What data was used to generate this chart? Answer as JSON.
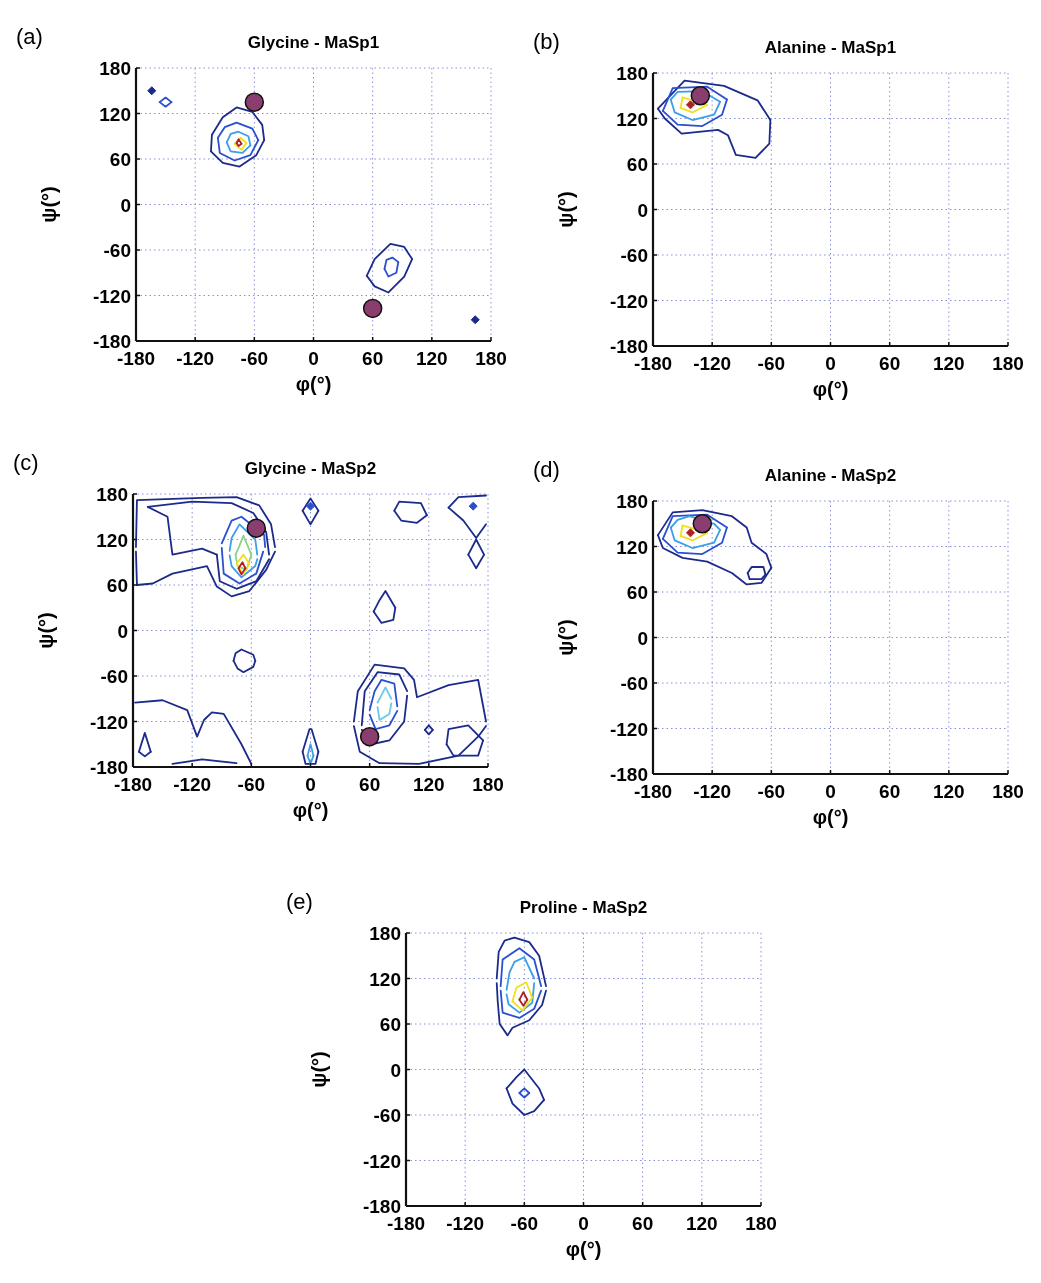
{
  "chart_data": [
    {
      "type": "line",
      "title": "Glycine - MaSp1",
      "xlabel": "φ(°)",
      "ylabel": "ψ(°)",
      "annotations": [
        "(a)"
      ],
      "xlim": [
        -180,
        180
      ],
      "ylim": [
        -180,
        180
      ],
      "xticks": [
        -180,
        -120,
        -60,
        0,
        60,
        120,
        180
      ],
      "yticks": [
        -180,
        -120,
        -60,
        0,
        60,
        120,
        180
      ],
      "grid": true,
      "series": [
        {
          "color": "#1c2a8c",
          "x": [
            -104,
            -103,
            -92,
            -78,
            -62,
            -52,
            -50
          ],
          "values": [
            70,
            92,
            115,
            128,
            122,
            105,
            85
          ]
        },
        {
          "color": "#1c2a8c",
          "x": [
            -104,
            -92,
            -75,
            -58,
            -50
          ],
          "values": [
            70,
            55,
            50,
            65,
            85
          ]
        },
        {
          "color": "#2a4fd0",
          "x": [
            -97,
            -90,
            -78,
            -62,
            -56
          ],
          "values": [
            88,
            102,
            108,
            100,
            85
          ]
        },
        {
          "color": "#2a4fd0",
          "x": [
            -97,
            -95,
            -80,
            -64,
            -56
          ],
          "values": [
            88,
            68,
            58,
            65,
            85
          ]
        },
        {
          "color": "#3a9ee8",
          "x": [
            -88,
            -84,
            -76,
            -66,
            -64
          ],
          "values": [
            82,
            93,
            96,
            90,
            78
          ]
        },
        {
          "color": "#3a9ee8",
          "x": [
            -88,
            -84,
            -72,
            -64
          ],
          "values": [
            82,
            70,
            68,
            78
          ]
        },
        {
          "color": "#f0e020",
          "x": [
            -80,
            -74,
            -68
          ],
          "values": [
            80,
            88,
            81
          ]
        },
        {
          "color": "#f0e020",
          "x": [
            -80,
            -73,
            -68
          ],
          "values": [
            80,
            72,
            81
          ]
        },
        {
          "color": "#b02020",
          "x": [
            -78,
            -76,
            -73
          ],
          "values": [
            81,
            86,
            80
          ]
        },
        {
          "color": "#b02020",
          "x": [
            -78,
            -76,
            -73
          ],
          "values": [
            81,
            77,
            80
          ]
        },
        {
          "color": "#2a4fd0",
          "x": [
            -156,
            -150,
            -144
          ],
          "values": [
            135,
            141,
            135
          ]
        },
        {
          "color": "#2a4fd0",
          "x": [
            -156,
            -150,
            -144
          ],
          "values": [
            135,
            129,
            135
          ]
        },
        {
          "type": "scatter",
          "marker": "diamond",
          "color": "#1c2a8c",
          "x": [
            -164,
            164
          ],
          "values": [
            150,
            -152
          ]
        },
        {
          "color": "#1c2a8c",
          "x": [
            54,
            62,
            78,
            92,
            100
          ],
          "values": [
            -94,
            -72,
            -52,
            -56,
            -72
          ]
        },
        {
          "color": "#1c2a8c",
          "x": [
            54,
            62,
            76,
            92,
            100
          ],
          "values": [
            -94,
            -108,
            -116,
            -95,
            -72
          ]
        },
        {
          "color": "#2a4fd0",
          "x": [
            72,
            74,
            80,
            86
          ],
          "values": [
            -85,
            -73,
            -70,
            -76
          ]
        },
        {
          "color": "#2a4fd0",
          "x": [
            72,
            76,
            84,
            86
          ],
          "values": [
            -85,
            -95,
            -90,
            -76
          ]
        },
        {
          "type": "scatter",
          "marker": "circle",
          "color": "#8a3d6e",
          "x": [
            -60,
            60
          ],
          "values": [
            135,
            -137
          ]
        }
      ]
    },
    {
      "type": "line",
      "title": "Alanine - MaSp1",
      "xlabel": "φ(°)",
      "ylabel": "ψ(°)",
      "annotations": [
        "(b)"
      ],
      "xlim": [
        -180,
        180
      ],
      "ylim": [
        -180,
        180
      ],
      "xticks": [
        -180,
        -120,
        -60,
        0,
        60,
        120,
        180
      ],
      "yticks": [
        -180,
        -120,
        -60,
        0,
        60,
        120,
        180
      ],
      "grid": true,
      "series": [
        {
          "color": "#1c2a8c",
          "x": [
            -175,
            -148,
            -108,
            -74,
            -61
          ],
          "values": [
            133,
            170,
            163,
            144,
            118
          ]
        },
        {
          "color": "#1c2a8c",
          "x": [
            -175,
            -168,
            -151,
            -114,
            -104,
            -96,
            -76,
            -62,
            -61
          ],
          "values": [
            133,
            120,
            100,
            105,
            98,
            72,
            68,
            87,
            118
          ]
        },
        {
          "color": "#2a4fd0",
          "x": [
            -170,
            -160,
            -125,
            -105
          ],
          "values": [
            130,
            160,
            162,
            145
          ]
        },
        {
          "color": "#2a4fd0",
          "x": [
            -170,
            -155,
            -130,
            -110,
            -105
          ],
          "values": [
            130,
            112,
            110,
            125,
            145
          ]
        },
        {
          "color": "#3a9ee8",
          "x": [
            -162,
            -155,
            -130,
            -112
          ],
          "values": [
            145,
            155,
            156,
            142
          ]
        },
        {
          "color": "#3a9ee8",
          "x": [
            -162,
            -158,
            -140,
            -118,
            -112
          ],
          "values": [
            145,
            128,
            118,
            125,
            142
          ]
        },
        {
          "color": "#f0e020",
          "x": [
            -152,
            -150,
            -125
          ],
          "values": [
            134,
            148,
            138
          ]
        },
        {
          "color": "#f0e020",
          "x": [
            -152,
            -140,
            -125
          ],
          "values": [
            134,
            128,
            138
          ]
        },
        {
          "type": "scatter",
          "marker": "diamond",
          "color": "#b02020",
          "x": [
            -142
          ],
          "values": [
            138
          ]
        },
        {
          "type": "scatter",
          "marker": "circle",
          "color": "#8a3d6e",
          "x": [
            -132
          ],
          "values": [
            150
          ]
        }
      ]
    },
    {
      "type": "line",
      "title": "Glycine - MaSp2",
      "xlabel": "φ(°)",
      "ylabel": "ψ(°)",
      "annotations": [
        "(c)"
      ],
      "xlim": [
        -180,
        180
      ],
      "ylim": [
        -180,
        180
      ],
      "xticks": [
        -180,
        -120,
        -60,
        0,
        60,
        120,
        180
      ],
      "yticks": [
        -180,
        -120,
        -60,
        0,
        60,
        120,
        180
      ],
      "grid": true,
      "series": [
        {
          "color": "#1c2a8c",
          "x": [
            -177,
            -176,
            -110,
            -75,
            -52,
            -40,
            -36
          ],
          "values": [
            110,
            172,
            175,
            176,
            165,
            140,
            110
          ]
        },
        {
          "color": "#1c2a8c",
          "x": [
            -177,
            -176,
            -160,
            -140,
            -105,
            -95,
            -80,
            -62,
            -45,
            -36
          ],
          "values": [
            104,
            60,
            62,
            75,
            85,
            58,
            45,
            52,
            80,
            104
          ]
        },
        {
          "color": "#1c2a8c",
          "x": [
            -165,
            -120,
            -80,
            -58,
            -45,
            -42
          ],
          "values": [
            163,
            170,
            168,
            155,
            130,
            100
          ]
        },
        {
          "color": "#1c2a8c",
          "x": [
            -95,
            -92,
            -75,
            -55,
            -42
          ],
          "values": [
            100,
            65,
            55,
            65,
            94
          ]
        },
        {
          "color": "#1c2a8c",
          "x": [
            -165,
            -145,
            -140,
            -110,
            -95
          ],
          "values": [
            163,
            150,
            100,
            108,
            100
          ]
        },
        {
          "color": "#2a4fd0",
          "x": [
            -90,
            -80,
            -70,
            -47,
            -46
          ],
          "values": [
            115,
            145,
            150,
            126,
            110
          ]
        },
        {
          "color": "#2a4fd0",
          "x": [
            -90,
            -88,
            -72,
            -55,
            -48
          ],
          "values": [
            109,
            75,
            62,
            75,
            104
          ]
        },
        {
          "color": "#3a9ee8",
          "x": [
            -82,
            -80,
            -72,
            -56,
            -54
          ],
          "values": [
            105,
            122,
            140,
            120,
            100
          ]
        },
        {
          "color": "#3a9ee8",
          "x": [
            -82,
            -80,
            -70,
            -56,
            -54
          ],
          "values": [
            99,
            85,
            70,
            85,
            94
          ]
        },
        {
          "color": "#8fd08a",
          "x": [
            -76,
            -72,
            -68,
            -60
          ],
          "values": [
            100,
            112,
            125,
            100
          ]
        },
        {
          "color": "#8fd08a",
          "x": [
            -76,
            -74,
            -65,
            -60
          ],
          "values": [
            100,
            85,
            80,
            100
          ]
        },
        {
          "color": "#f0e020",
          "x": [
            -75,
            -68,
            -62
          ],
          "values": [
            88,
            100,
            88
          ]
        },
        {
          "color": "#f0e020",
          "x": [
            -75,
            -68,
            -62
          ],
          "values": [
            88,
            74,
            88
          ]
        },
        {
          "color": "#b02020",
          "x": [
            -73,
            -69,
            -66
          ],
          "values": [
            82,
            90,
            82
          ]
        },
        {
          "color": "#b02020",
          "x": [
            -73,
            -70,
            -66
          ],
          "values": [
            82,
            74,
            82
          ]
        },
        {
          "color": "#1c2a8c",
          "x": [
            -8,
            0,
            8
          ],
          "values": [
            158,
            174,
            158
          ]
        },
        {
          "color": "#1c2a8c",
          "x": [
            -8,
            0,
            8
          ],
          "values": [
            158,
            140,
            158
          ]
        },
        {
          "type": "scatter",
          "marker": "diamond",
          "color": "#2a4fd0",
          "x": [
            0,
            165
          ],
          "values": [
            164,
            164
          ]
        },
        {
          "color": "#1c2a8c",
          "x": [
            -78,
            -76,
            -70,
            -58,
            -56
          ],
          "values": [
            -40,
            -30,
            -25,
            -32,
            -40
          ]
        },
        {
          "color": "#1c2a8c",
          "x": [
            -78,
            -74,
            -68,
            -58,
            -56
          ],
          "values": [
            -40,
            -50,
            -55,
            -48,
            -40
          ]
        },
        {
          "color": "#1c2a8c",
          "x": [
            64,
            70,
            76,
            86
          ],
          "values": [
            25,
            40,
            52,
            30
          ]
        },
        {
          "color": "#1c2a8c",
          "x": [
            64,
            72,
            84,
            86
          ],
          "values": [
            25,
            10,
            14,
            30
          ]
        },
        {
          "color": "#1c2a8c",
          "x": [
            85,
            90,
            112,
            118
          ],
          "values": [
            158,
            170,
            168,
            152
          ]
        },
        {
          "color": "#1c2a8c",
          "x": [
            85,
            92,
            108,
            118
          ],
          "values": [
            158,
            145,
            142,
            152
          ]
        },
        {
          "color": "#1c2a8c",
          "x": [
            140,
            150,
            178
          ],
          "values": [
            162,
            176,
            178
          ]
        },
        {
          "color": "#1c2a8c",
          "x": [
            140,
            155,
            168,
            178
          ],
          "values": [
            162,
            145,
            122,
            140
          ]
        },
        {
          "color": "#1c2a8c",
          "x": [
            160,
            168,
            176
          ],
          "values": [
            100,
            120,
            100
          ]
        },
        {
          "color": "#1c2a8c",
          "x": [
            160,
            168,
            176
          ],
          "values": [
            100,
            82,
            100
          ]
        },
        {
          "color": "#1c2a8c",
          "x": [
            -178,
            -150,
            -125,
            -115,
            -108,
            -100,
            -88,
            -70,
            -60
          ],
          "values": [
            -95,
            -92,
            -105,
            -140,
            -118,
            -108,
            -110,
            -150,
            -176
          ]
        },
        {
          "color": "#1c2a8c",
          "x": [
            -140,
            -110,
            -75
          ],
          "values": [
            -176,
            -170,
            -175
          ]
        },
        {
          "color": "#1c2a8c",
          "x": [
            -174,
            -168,
            -162
          ],
          "values": [
            -160,
            -135,
            -160
          ]
        },
        {
          "color": "#1c2a8c",
          "x": [
            -174,
            -168,
            -162
          ],
          "values": [
            -160,
            -166,
            -160
          ]
        },
        {
          "color": "#1c2a8c",
          "x": [
            -8,
            -1,
            1,
            8
          ],
          "values": [
            -160,
            -130,
            -130,
            -160
          ]
        },
        {
          "color": "#1c2a8c",
          "x": [
            -8,
            -5,
            5,
            8
          ],
          "values": [
            -160,
            -176,
            -176,
            -160
          ]
        },
        {
          "color": "#3a9ee8",
          "x": [
            -3,
            0,
            3
          ],
          "values": [
            -165,
            -150,
            -165
          ]
        },
        {
          "color": "#3a9ee8",
          "x": [
            -3,
            0,
            3
          ],
          "values": [
            -165,
            -176,
            -165
          ]
        },
        {
          "color": "#1c2a8c",
          "x": [
            44,
            48,
            65,
            95,
            105,
            108,
            140,
            170,
            178
          ],
          "values": [
            -120,
            -80,
            -45,
            -50,
            -65,
            -88,
            -72,
            -65,
            -120
          ]
        },
        {
          "color": "#1c2a8c",
          "x": [
            44,
            50,
            70,
            110,
            150,
            170,
            178
          ],
          "values": [
            -126,
            -160,
            -175,
            -176,
            -165,
            -140,
            -126
          ]
        },
        {
          "color": "#1c2a8c",
          "x": [
            52,
            55,
            68,
            90,
            98
          ],
          "values": [
            -125,
            -80,
            -55,
            -58,
            -80
          ]
        },
        {
          "color": "#1c2a8c",
          "x": [
            52,
            62,
            80,
            95,
            98
          ],
          "values": [
            -131,
            -150,
            -145,
            -120,
            -86
          ]
        },
        {
          "color": "#2a4fd0",
          "x": [
            60,
            65,
            72,
            85,
            88
          ],
          "values": [
            -105,
            -80,
            -65,
            -70,
            -100
          ]
        },
        {
          "color": "#2a4fd0",
          "x": [
            60,
            66,
            80,
            88
          ],
          "values": [
            -111,
            -130,
            -125,
            -106
          ]
        },
        {
          "color": "#6cc8e8",
          "x": [
            68,
            76,
            82
          ],
          "values": [
            -95,
            -75,
            -90
          ]
        },
        {
          "color": "#6cc8e8",
          "x": [
            68,
            70,
            80,
            82
          ],
          "values": [
            -101,
            -118,
            -110,
            -96
          ]
        },
        {
          "color": "#1c2a8c",
          "x": [
            116,
            120,
            124
          ],
          "values": [
            -131,
            -125,
            -131
          ]
        },
        {
          "color": "#1c2a8c",
          "x": [
            116,
            120,
            124
          ],
          "values": [
            -131,
            -137,
            -131
          ]
        },
        {
          "color": "#1c2a8c",
          "x": [
            138,
            140,
            160,
            175
          ],
          "values": [
            -150,
            -130,
            -125,
            -145
          ]
        },
        {
          "color": "#1c2a8c",
          "x": [
            138,
            145,
            170,
            175
          ],
          "values": [
            -150,
            -165,
            -165,
            -145
          ]
        },
        {
          "type": "scatter",
          "marker": "circle",
          "color": "#8a3d6e",
          "x": [
            -55,
            60
          ],
          "values": [
            135,
            -140
          ]
        }
      ]
    },
    {
      "type": "line",
      "title": "Alanine - MaSp2",
      "xlabel": "φ(°)",
      "ylabel": "ψ(°)",
      "annotations": [
        "(d)"
      ],
      "xlim": [
        -180,
        180
      ],
      "ylim": [
        -180,
        180
      ],
      "xticks": [
        -180,
        -120,
        -60,
        0,
        60,
        120,
        180
      ],
      "yticks": [
        -180,
        -120,
        -60,
        0,
        60,
        120,
        180
      ],
      "grid": true,
      "series": [
        {
          "color": "#1c2a8c",
          "x": [
            -175,
            -160,
            -130,
            -100,
            -85,
            -80,
            -65,
            -60
          ],
          "values": [
            135,
            165,
            168,
            160,
            145,
            125,
            110,
            92
          ]
        },
        {
          "color": "#1c2a8c",
          "x": [
            -175,
            -170,
            -150,
            -125,
            -100,
            -85,
            -70,
            -60
          ],
          "values": [
            135,
            118,
            105,
            100,
            85,
            70,
            72,
            92
          ]
        },
        {
          "color": "#1c2a8c",
          "x": [
            -84,
            -80,
            -68,
            -66
          ],
          "values": [
            85,
            93,
            93,
            83
          ]
        },
        {
          "color": "#1c2a8c",
          "x": [
            -84,
            -82,
            -70,
            -66
          ],
          "values": [
            85,
            77,
            77,
            83
          ]
        },
        {
          "color": "#2a4fd0",
          "x": [
            -170,
            -160,
            -125,
            -105
          ],
          "values": [
            130,
            160,
            162,
            145
          ]
        },
        {
          "color": "#2a4fd0",
          "x": [
            -170,
            -155,
            -130,
            -110,
            -105
          ],
          "values": [
            130,
            112,
            110,
            125,
            145
          ]
        },
        {
          "color": "#3a9ee8",
          "x": [
            -162,
            -155,
            -143,
            -118,
            -112
          ],
          "values": [
            145,
            155,
            160,
            150,
            142
          ]
        },
        {
          "color": "#3a9ee8",
          "x": [
            -162,
            -158,
            -140,
            -118,
            -112
          ],
          "values": [
            145,
            128,
            118,
            125,
            142
          ]
        },
        {
          "color": "#f0e020",
          "x": [
            -152,
            -150,
            -125
          ],
          "values": [
            134,
            148,
            138
          ]
        },
        {
          "color": "#f0e020",
          "x": [
            -152,
            -140,
            -125
          ],
          "values": [
            134,
            128,
            138
          ]
        },
        {
          "type": "scatter",
          "marker": "diamond",
          "color": "#b02020",
          "x": [
            -142
          ],
          "values": [
            138
          ]
        },
        {
          "type": "scatter",
          "marker": "circle",
          "color": "#8a3d6e",
          "x": [
            -130
          ],
          "values": [
            150
          ]
        }
      ]
    },
    {
      "type": "line",
      "title": "Proline - MaSp2",
      "xlabel": "φ(°)",
      "ylabel": "ψ(°)",
      "annotations": [
        "(e)"
      ],
      "xlim": [
        -180,
        180
      ],
      "ylim": [
        -180,
        180
      ],
      "xticks": [
        -180,
        -120,
        -60,
        0,
        60,
        120,
        180
      ],
      "yticks": [
        -180,
        -120,
        -60,
        0,
        60,
        120,
        180
      ],
      "grid": true,
      "series": [
        {
          "color": "#1c2a8c",
          "x": [
            -88,
            -86,
            -80,
            -70,
            -55,
            -45,
            -38
          ],
          "values": [
            120,
            155,
            170,
            174,
            168,
            150,
            110
          ]
        },
        {
          "color": "#1c2a8c",
          "x": [
            -88,
            -87,
            -85,
            -77,
            -72,
            -55,
            -42,
            -38
          ],
          "values": [
            114,
            90,
            60,
            45,
            55,
            65,
            85,
            104
          ]
        },
        {
          "color": "#2a4fd0",
          "x": [
            -84,
            -82,
            -65,
            -50,
            -43
          ],
          "values": [
            110,
            145,
            160,
            145,
            110
          ]
        },
        {
          "color": "#2a4fd0",
          "x": [
            -84,
            -82,
            -65,
            -50,
            -43
          ],
          "values": [
            104,
            75,
            68,
            80,
            104
          ]
        },
        {
          "color": "#3a9ee8",
          "x": [
            -78,
            -75,
            -70,
            -60,
            -50
          ],
          "values": [
            105,
            128,
            142,
            148,
            120
          ]
        },
        {
          "color": "#3a9ee8",
          "x": [
            -78,
            -76,
            -65,
            -52,
            -50
          ],
          "values": [
            99,
            86,
            75,
            88,
            114
          ]
        },
        {
          "color": "#f0e020",
          "x": [
            -72,
            -68,
            -58,
            -52
          ],
          "values": [
            90,
            108,
            115,
            95
          ]
        },
        {
          "color": "#f0e020",
          "x": [
            -72,
            -62,
            -52
          ],
          "values": [
            90,
            78,
            95
          ]
        },
        {
          "color": "#b02020",
          "x": [
            -65,
            -61,
            -57
          ],
          "values": [
            92,
            102,
            92
          ]
        },
        {
          "color": "#b02020",
          "x": [
            -65,
            -61,
            -57
          ],
          "values": [
            92,
            84,
            92
          ]
        },
        {
          "color": "#1c2a8c",
          "x": [
            -78,
            -68,
            -60,
            -45,
            -40
          ],
          "values": [
            -25,
            -10,
            0,
            -25,
            -40
          ]
        },
        {
          "color": "#1c2a8c",
          "x": [
            -78,
            -72,
            -60,
            -50,
            -40
          ],
          "values": [
            -25,
            -45,
            -60,
            -55,
            -40
          ]
        },
        {
          "color": "#2a4fd0",
          "x": [
            -65,
            -60,
            -55
          ],
          "values": [
            -31,
            -25,
            -31
          ]
        },
        {
          "color": "#2a4fd0",
          "x": [
            -65,
            -60,
            -55
          ],
          "values": [
            -31,
            -37,
            -31
          ]
        }
      ]
    }
  ]
}
